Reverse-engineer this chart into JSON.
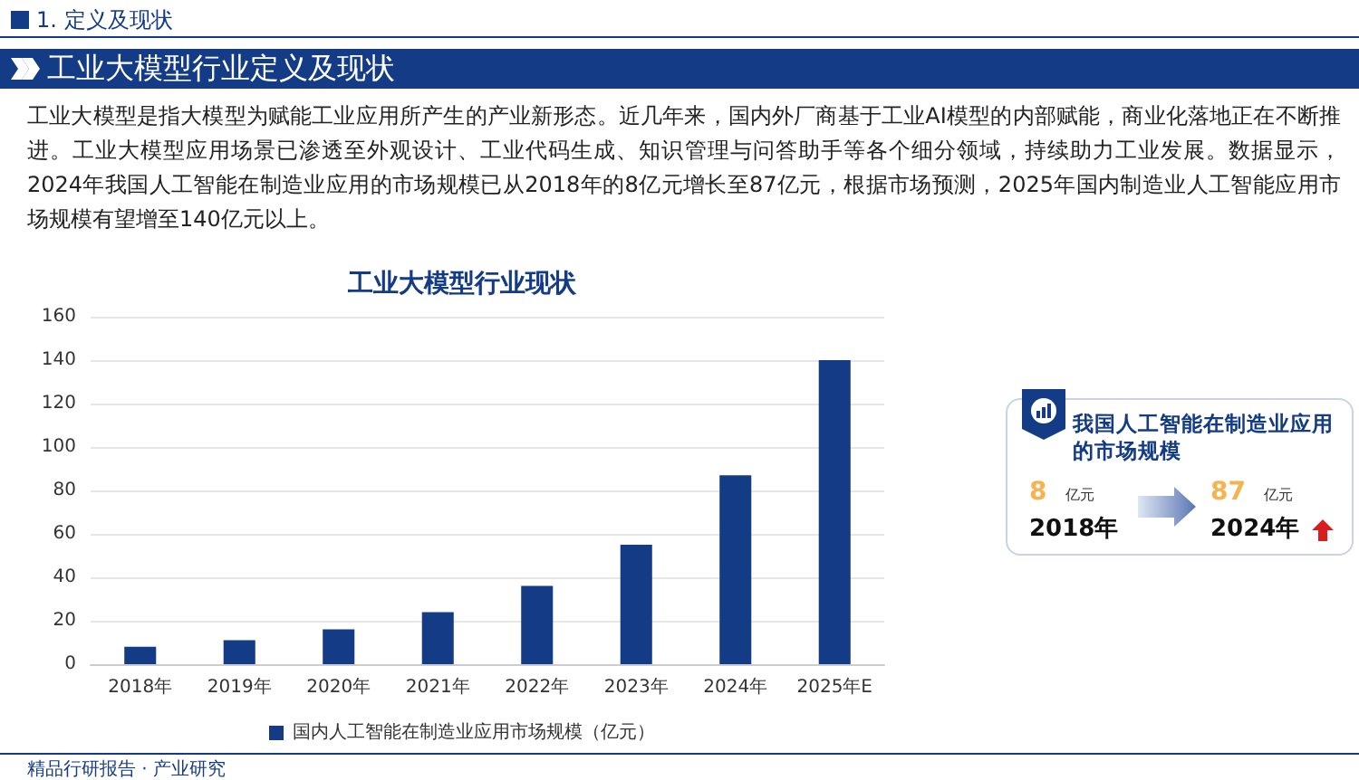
{
  "chart_data": [
    {
      "type": "bar",
      "title": "工业大模型行业现状",
      "categories": [
        "2018年",
        "2019年",
        "2020年",
        "2021年",
        "2022年",
        "2023年",
        "2024年",
        "2025年E"
      ],
      "series": [
        {
          "name": "国内人工智能在制造业应用市场规模（亿元）",
          "color": "#133b86",
          "values": [
            8,
            11,
            16,
            24,
            36,
            55,
            87,
            140
          ]
        }
      ],
      "ylim": [
        0,
        160
      ],
      "yticks": [
        0,
        20,
        40,
        60,
        80,
        100,
        120,
        140,
        160
      ],
      "grid": "y",
      "legend": "bottom",
      "annotations": [
        "1. 定义及现状",
        "工业大模型行业定义及现状",
        "工业大模型是指大模型为赋能工业应用所产生的产业新形态。近几年来，国内外厂商基于工业AI模型的内部赋能，商业化落地正在不断推进。工业大模型应用场景已渗透至外观设计、工业代码生成、知识管理与问答助手等各个细分领域，持续助力工业发展。数据显示，2024年我国人工智能在制造业应用的市场规模已从2018年的8亿元增长至87亿元，根据市场预测，2025年国内制造业人工智能应用市场规模有望增至140亿元以上。",
        "精品行研报告 · 产业研究"
      ]
    },
    {
      "type": "other",
      "title": "我国人工智能在制造业应用的市场规模",
      "annotations": [
        "8",
        "亿元",
        "2018年",
        "87",
        "亿元",
        "2024年"
      ]
    }
  ]
}
